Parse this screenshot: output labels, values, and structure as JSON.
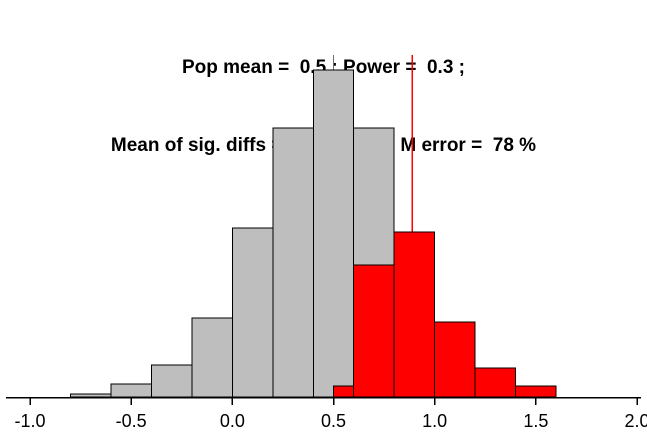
{
  "title": {
    "line1": "Pop mean =  0.5 ; Power =  0.3 ;",
    "line2": "Mean of sig. diffs =  0.89 ;  Type M error =  78 %"
  },
  "chart_data": {
    "type": "bar",
    "subtype": "histogram-overlay",
    "title": "Pop mean =  0.5 ; Power =  0.3 ; Mean of sig. diffs =  0.89 ;  Type M error =  78 %",
    "xlabel": "",
    "ylabel": "",
    "xlim": [
      -1.0,
      2.0
    ],
    "ylim": [
      0,
      342
    ],
    "y_units": "frequency (arbitrary, no y-axis drawn)",
    "grid": false,
    "legend": "none",
    "x_ticks": [
      -1.0,
      -0.5,
      0.0,
      0.5,
      1.0,
      1.5,
      2.0
    ],
    "x_tick_labels": [
      "-1.0",
      "-0.5",
      "0.0",
      "0.5",
      "1.0",
      "1.5",
      "2.0"
    ],
    "gray_bins": [
      {
        "x0": -0.8,
        "x1": -0.6,
        "v": 3
      },
      {
        "x0": -0.6,
        "x1": -0.4,
        "v": 13
      },
      {
        "x0": -0.4,
        "x1": -0.2,
        "v": 32
      },
      {
        "x0": -0.2,
        "x1": 0.0,
        "v": 79
      },
      {
        "x0": 0.0,
        "x1": 0.2,
        "v": 169
      },
      {
        "x0": 0.2,
        "x1": 0.4,
        "v": 269
      },
      {
        "x0": 0.4,
        "x1": 0.6,
        "v": 327
      },
      {
        "x0": 0.6,
        "x1": 0.8,
        "v": 269
      },
      {
        "x0": 0.8,
        "x1": 1.0,
        "v": 165
      },
      {
        "x0": 1.0,
        "x1": 1.2,
        "v": 75
      },
      {
        "x0": 1.2,
        "x1": 1.4,
        "v": 29
      },
      {
        "x0": 1.4,
        "x1": 1.6,
        "v": 11
      }
    ],
    "red_bins": [
      {
        "x0": 0.5,
        "x1": 0.6,
        "v": 11
      },
      {
        "x0": 0.6,
        "x1": 0.8,
        "v": 132
      },
      {
        "x0": 0.8,
        "x1": 1.0,
        "v": 165
      },
      {
        "x0": 1.0,
        "x1": 1.2,
        "v": 75
      },
      {
        "x0": 1.2,
        "x1": 1.4,
        "v": 29
      },
      {
        "x0": 1.4,
        "x1": 1.6,
        "v": 11
      }
    ],
    "vlines": [
      {
        "x": 0.5,
        "color": "#6e6e6e",
        "name": "pop-mean-vline"
      },
      {
        "x": 0.89,
        "color": "#ff0000",
        "name": "sig-diff-mean-vline"
      }
    ],
    "colors": {
      "bar_gray": "#bebebe",
      "bar_red": "#ff0000",
      "bar_stroke": "#000000",
      "axis": "#000000",
      "text": "#000000"
    }
  }
}
